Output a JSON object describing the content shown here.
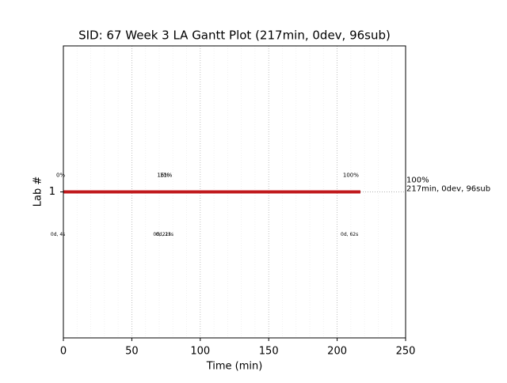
{
  "chart_data": {
    "type": "gantt",
    "title": "SID: 67 Week 3 LA Gantt Plot (217min, 0dev, 96sub)",
    "xlabel": "Time (min)",
    "ylabel": "Lab #",
    "categories": [
      "1"
    ],
    "bars": [
      {
        "start": 0,
        "end": 217,
        "color": "#c0191c"
      }
    ],
    "xlim": [
      0,
      250
    ],
    "xticks": [
      0,
      50,
      100,
      150,
      200,
      250
    ],
    "minor_xticks": [
      10,
      20,
      30,
      40,
      60,
      70,
      80,
      90,
      110,
      120,
      130,
      140,
      160,
      170,
      180,
      190,
      210,
      220,
      230,
      240
    ],
    "grid": true,
    "top_labels": [
      {
        "text": "0%",
        "x": -2
      },
      {
        "text": "16%",
        "x": 73
      },
      {
        "text": "11%",
        "x": 75
      },
      {
        "text": "100%",
        "x": 210
      }
    ],
    "bottom_labels": [
      {
        "text": "0d, 4s",
        "x": -4
      },
      {
        "text": "0d, 21s",
        "x": 72
      },
      {
        "text": "0d, 23s",
        "x": 74
      },
      {
        "text": "0d, 62s",
        "x": 209
      }
    ],
    "end_labels": [
      "100%",
      "217min, 0dev, 96sub"
    ]
  }
}
